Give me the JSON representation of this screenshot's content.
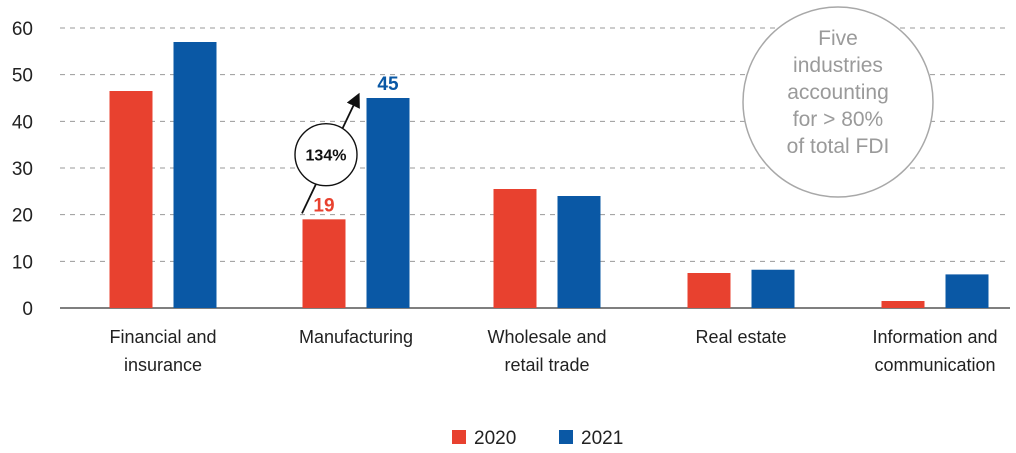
{
  "chart_data": {
    "type": "bar",
    "categories": [
      [
        "Financial and",
        "insurance"
      ],
      [
        "Manufacturing"
      ],
      [
        "Wholesale and",
        "retail trade"
      ],
      [
        "Real estate"
      ],
      [
        "Information and",
        "communication"
      ]
    ],
    "series": [
      {
        "name": "2020",
        "color": "#e8412f",
        "values": [
          46.5,
          19,
          25.5,
          7.5,
          1.5
        ]
      },
      {
        "name": "2021",
        "color": "#0a58a5",
        "values": [
          57,
          45,
          24,
          8.2,
          7.2
        ]
      }
    ],
    "ylim": [
      0,
      60
    ],
    "yticks": [
      "0",
      "10",
      "20",
      "30",
      "40",
      "50",
      "60"
    ],
    "grid": true,
    "legend": "bottom-center",
    "data_labels": [
      {
        "category": "Manufacturing",
        "series": "2020",
        "text": "19"
      },
      {
        "category": "Manufacturing",
        "series": "2021",
        "text": "45"
      }
    ],
    "growth_annotation": {
      "category": "Manufacturing",
      "text": "134%"
    },
    "note_circle": [
      "Five",
      "industries",
      "accounting",
      "for > 80%",
      "of total FDI"
    ]
  }
}
